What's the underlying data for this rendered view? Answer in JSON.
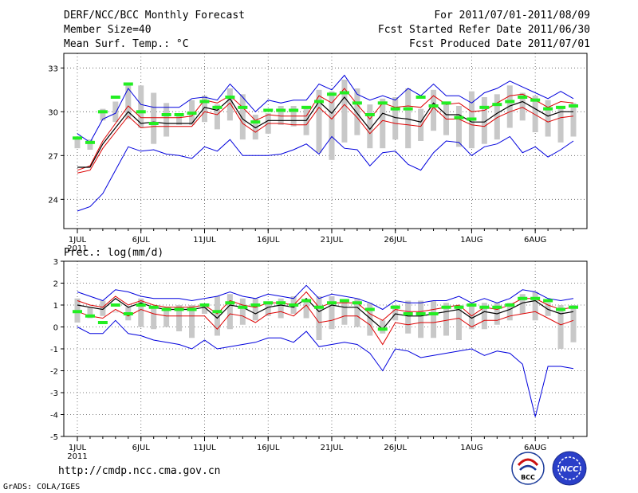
{
  "header": {
    "title": "DERF/NCC/BCC Monthly Forecast",
    "member_size": "Member Size=40",
    "variable": "Mean Surf. Temp.: °C",
    "period": "For 2011/07/01-2011/08/09",
    "refer_date": "Fcst Started Refer Date 2011/06/30",
    "produced_date": "Fcst Produced Date 2011/07/01"
  },
  "footer": {
    "url": "http://cmdp.ncc.cma.gov.cn",
    "credit": "GrADS: COLA/IGES",
    "logo_bcc": "BCC",
    "logo_ncc": "NCC"
  },
  "colors": {
    "max_line": "#0000dd",
    "min_line": "#0000dd",
    "upper_line": "#dd0000",
    "lower_line": "#dd0000",
    "mean_line": "#000000",
    "observed_marker": "#22ee22",
    "spread_bar": "#c8c8c8"
  },
  "chart_data": [
    {
      "type": "line",
      "title": "Mean Surf. Temp.: °C",
      "x": [
        1,
        2,
        3,
        4,
        5,
        6,
        7,
        8,
        9,
        10,
        11,
        12,
        13,
        14,
        15,
        16,
        17,
        18,
        19,
        20,
        21,
        22,
        23,
        24,
        25,
        26,
        27,
        28,
        29,
        30,
        31,
        32,
        33,
        34,
        35,
        36,
        37,
        38,
        39,
        40
      ],
      "xticks": [
        {
          "day": 1,
          "label": "1JUL"
        },
        {
          "day": 6,
          "label": "6JUL"
        },
        {
          "day": 11,
          "label": "11JUL"
        },
        {
          "day": 16,
          "label": "16JUL"
        },
        {
          "day": 21,
          "label": "21JUL"
        },
        {
          "day": 26,
          "label": "26JUL"
        },
        {
          "day": 32,
          "label": "1AUG"
        },
        {
          "day": 37,
          "label": "6AUG"
        }
      ],
      "year_label": "2011",
      "ylim": [
        22,
        34
      ],
      "yticks": [
        24,
        27,
        30,
        33
      ],
      "grid": true,
      "series": [
        {
          "name": "max",
          "values": [
            28.5,
            27.9,
            29.5,
            29.9,
            31.6,
            30.5,
            30.3,
            30.3,
            30.3,
            30.9,
            31.0,
            30.8,
            31.9,
            31.0,
            30.0,
            30.8,
            30.6,
            30.8,
            30.8,
            31.9,
            31.5,
            32.5,
            31.2,
            30.8,
            31.1,
            30.8,
            31.6,
            31.1,
            31.9,
            31.1,
            31.1,
            30.6,
            31.3,
            31.6,
            32.1,
            31.7,
            31.3,
            30.9,
            31.4,
            30.9
          ]
        },
        {
          "name": "upper",
          "values": [
            26.0,
            26.3,
            28.0,
            29.2,
            30.4,
            29.6,
            29.6,
            29.6,
            29.6,
            29.7,
            30.8,
            30.6,
            31.1,
            30.3,
            29.4,
            29.8,
            29.7,
            29.7,
            29.7,
            31.1,
            30.6,
            31.6,
            30.5,
            29.5,
            30.6,
            30.3,
            30.4,
            30.3,
            31.1,
            30.5,
            30.6,
            30.0,
            30.1,
            30.6,
            31.1,
            31.2,
            30.8,
            30.3,
            30.7,
            30.6
          ]
        },
        {
          "name": "mean",
          "values": [
            26.2,
            26.2,
            27.8,
            28.9,
            30.0,
            29.2,
            29.3,
            29.2,
            29.2,
            29.2,
            30.3,
            30.1,
            30.9,
            29.5,
            28.9,
            29.4,
            29.4,
            29.4,
            29.4,
            30.7,
            29.9,
            31.0,
            29.9,
            28.8,
            29.9,
            29.6,
            29.5,
            29.3,
            30.6,
            29.8,
            29.8,
            29.3,
            29.3,
            29.9,
            30.4,
            30.7,
            30.2,
            29.7,
            30.0,
            30.0
          ]
        },
        {
          "name": "lower",
          "values": [
            25.8,
            26.0,
            27.5,
            28.6,
            29.7,
            28.9,
            29.0,
            29.0,
            29.0,
            29.0,
            30.0,
            29.8,
            30.6,
            29.2,
            28.6,
            29.2,
            29.2,
            29.1,
            29.1,
            30.3,
            29.5,
            30.5,
            29.6,
            28.5,
            29.4,
            29.2,
            29.1,
            29.0,
            30.3,
            29.5,
            29.5,
            29.1,
            29.0,
            29.6,
            30.0,
            30.3,
            29.8,
            29.3,
            29.6,
            29.7
          ]
        },
        {
          "name": "min",
          "values": [
            23.2,
            23.5,
            24.4,
            26.0,
            27.6,
            27.3,
            27.4,
            27.1,
            27.0,
            26.8,
            27.6,
            27.3,
            28.1,
            27.0,
            27.0,
            27.0,
            27.1,
            27.4,
            27.8,
            27.1,
            28.3,
            27.5,
            27.4,
            26.3,
            27.2,
            27.3,
            26.4,
            26.0,
            27.2,
            28.0,
            27.9,
            27.0,
            27.6,
            27.8,
            28.3,
            27.2,
            27.6,
            26.9,
            27.4,
            28.0
          ]
        }
      ],
      "spread_bars": {
        "low": [
          27.5,
          27.4,
          29.4,
          29.3,
          29.5,
          28.9,
          27.8,
          28.3,
          29.1,
          29.1,
          29.3,
          28.8,
          29.4,
          28.1,
          28.1,
          28.5,
          29.1,
          29.0,
          28.4,
          27.2,
          26.7,
          27.9,
          28.4,
          27.5,
          27.5,
          28.1,
          27.5,
          28.0,
          28.7,
          28.4,
          27.6,
          27.5,
          27.8,
          28.1,
          28.9,
          29.4,
          28.6,
          28.3,
          27.9,
          28.3
        ],
        "high": [
          28.3,
          28.1,
          30.2,
          30.7,
          32.0,
          31.8,
          31.3,
          30.6,
          29.9,
          30.8,
          31.1,
          30.5,
          31.6,
          31.2,
          29.8,
          29.9,
          30.4,
          30.4,
          30.4,
          31.5,
          31.4,
          32.2,
          31.6,
          30.5,
          30.9,
          31.0,
          31.6,
          30.2,
          31.5,
          30.5,
          30.4,
          31.4,
          31.0,
          31.2,
          31.8,
          31.3,
          31.1,
          30.8,
          30.4,
          30.6
        ]
      },
      "observed": [
        28.2,
        27.9,
        30.0,
        31.0,
        31.9,
        30.0,
        29.2,
        29.8,
        29.8,
        29.9,
        30.7,
        30.3,
        31.0,
        30.3,
        29.3,
        30.1,
        30.1,
        30.1,
        30.3,
        30.7,
        31.2,
        31.3,
        30.6,
        29.8,
        30.6,
        30.2,
        30.2,
        31.0,
        30.4,
        30.6,
        29.6,
        29.5,
        30.3,
        30.5,
        30.7,
        31.0,
        30.8,
        30.2,
        30.3,
        30.4
      ]
    },
    {
      "type": "line",
      "title": "Prec.: log(mm/d)",
      "x": [
        1,
        2,
        3,
        4,
        5,
        6,
        7,
        8,
        9,
        10,
        11,
        12,
        13,
        14,
        15,
        16,
        17,
        18,
        19,
        20,
        21,
        22,
        23,
        24,
        25,
        26,
        27,
        28,
        29,
        30,
        31,
        32,
        33,
        34,
        35,
        36,
        37,
        38,
        39,
        40
      ],
      "xticks": [
        {
          "day": 1,
          "label": "1JUL"
        },
        {
          "day": 6,
          "label": "6JUL"
        },
        {
          "day": 11,
          "label": "11JUL"
        },
        {
          "day": 16,
          "label": "16JUL"
        },
        {
          "day": 21,
          "label": "21JUL"
        },
        {
          "day": 26,
          "label": "26JUL"
        },
        {
          "day": 32,
          "label": "1AUG"
        },
        {
          "day": 37,
          "label": "6AUG"
        }
      ],
      "year_label": "2011",
      "ylim": [
        -5,
        3
      ],
      "yticks": [
        -5,
        -4,
        -3,
        -2,
        -1,
        0,
        1,
        2,
        3
      ],
      "grid": true,
      "series": [
        {
          "name": "max",
          "values": [
            1.6,
            1.4,
            1.2,
            1.7,
            1.6,
            1.4,
            1.3,
            1.3,
            1.3,
            1.2,
            1.3,
            1.4,
            1.6,
            1.4,
            1.3,
            1.5,
            1.4,
            1.3,
            1.9,
            1.3,
            1.5,
            1.4,
            1.3,
            1.1,
            0.8,
            1.2,
            1.1,
            1.1,
            1.2,
            1.2,
            1.4,
            1.1,
            1.3,
            1.1,
            1.3,
            1.7,
            1.6,
            1.3,
            1.2,
            1.3
          ]
        },
        {
          "name": "upper",
          "values": [
            1.2,
            1.0,
            0.9,
            1.4,
            1.0,
            1.2,
            1.0,
            0.9,
            0.9,
            0.9,
            1.0,
            0.6,
            1.2,
            1.0,
            0.9,
            1.1,
            1.1,
            1.0,
            1.6,
            0.9,
            1.1,
            1.1,
            1.1,
            0.6,
            0.3,
            0.8,
            0.7,
            0.7,
            0.8,
            0.9,
            1.0,
            0.5,
            0.9,
            0.8,
            1.0,
            1.3,
            1.3,
            1.0,
            0.8,
            0.9
          ]
        },
        {
          "name": "mean",
          "values": [
            1.0,
            0.9,
            0.8,
            1.3,
            0.9,
            1.1,
            0.9,
            0.8,
            0.8,
            0.8,
            0.9,
            0.4,
            1.0,
            0.9,
            0.6,
            0.9,
            1.0,
            0.9,
            1.3,
            0.7,
            1.0,
            0.9,
            0.9,
            0.4,
            -0.1,
            0.6,
            0.5,
            0.5,
            0.6,
            0.7,
            0.8,
            0.4,
            0.7,
            0.6,
            0.8,
            1.1,
            1.2,
            0.8,
            0.6,
            0.7
          ]
        },
        {
          "name": "lower",
          "values": [
            0.7,
            0.5,
            0.4,
            0.8,
            0.5,
            0.8,
            0.6,
            0.5,
            0.5,
            0.5,
            0.5,
            -0.1,
            0.6,
            0.5,
            0.2,
            0.6,
            0.7,
            0.5,
            1.0,
            0.2,
            0.3,
            0.5,
            0.5,
            0.1,
            -0.8,
            0.2,
            0.1,
            0.2,
            0.2,
            0.3,
            0.4,
            0.0,
            0.3,
            0.3,
            0.5,
            0.6,
            0.7,
            0.4,
            0.1,
            0.3
          ]
        },
        {
          "name": "min",
          "values": [
            0.0,
            -0.3,
            -0.3,
            0.3,
            -0.3,
            -0.4,
            -0.6,
            -0.7,
            -0.8,
            -1.0,
            -0.6,
            -1.0,
            -0.9,
            -0.8,
            -0.7,
            -0.5,
            -0.5,
            -0.7,
            -0.2,
            -0.9,
            -0.8,
            -0.7,
            -0.8,
            -1.2,
            -2.0,
            -1.0,
            -1.1,
            -1.4,
            -1.3,
            -1.2,
            -1.1,
            -1.0,
            -1.3,
            -1.1,
            -1.2,
            -1.7,
            -4.1,
            -1.8,
            -1.8,
            -1.9
          ]
        }
      ],
      "spread_bars": {
        "low": [
          0.2,
          0.4,
          0.5,
          0.7,
          0.3,
          0.0,
          -0.1,
          0.0,
          -0.2,
          -0.5,
          0.6,
          -0.4,
          -0.1,
          0.1,
          0.3,
          0.5,
          0.4,
          0.6,
          0.4,
          -0.6,
          -0.1,
          0.1,
          0.0,
          -0.4,
          -0.3,
          0.3,
          -0.3,
          -0.5,
          -0.5,
          -0.4,
          -0.6,
          -0.1,
          -0.1,
          0.1,
          0.3,
          0.6,
          0.3,
          0.5,
          -1.0,
          -0.7
        ],
        "high": [
          1.3,
          0.9,
          1.2,
          0.7,
          0.9,
          1.3,
          0.9,
          0.9,
          1.0,
          1.0,
          1.0,
          1.4,
          1.5,
          1.3,
          1.3,
          1.1,
          1.3,
          1.4,
          1.2,
          1.4,
          1.4,
          1.2,
          1.3,
          1.1,
          0.3,
          1.0,
          1.2,
          1.2,
          1.2,
          1.1,
          1.0,
          1.1,
          1.1,
          1.1,
          1.1,
          1.5,
          1.6,
          1.1,
          1.0,
          1.0
        ]
      },
      "observed": [
        0.7,
        0.5,
        0.2,
        1.0,
        0.6,
        1.0,
        0.9,
        0.8,
        0.8,
        0.8,
        1.0,
        0.7,
        1.1,
        0.9,
        1.0,
        1.1,
        1.1,
        1.0,
        1.2,
        0.9,
        1.1,
        1.2,
        1.1,
        0.8,
        -0.1,
        0.9,
        0.6,
        0.6,
        0.6,
        0.9,
        0.9,
        1.0,
        0.9,
        0.9,
        1.0,
        1.3,
        1.3,
        1.2,
        0.8,
        0.9
      ]
    }
  ]
}
